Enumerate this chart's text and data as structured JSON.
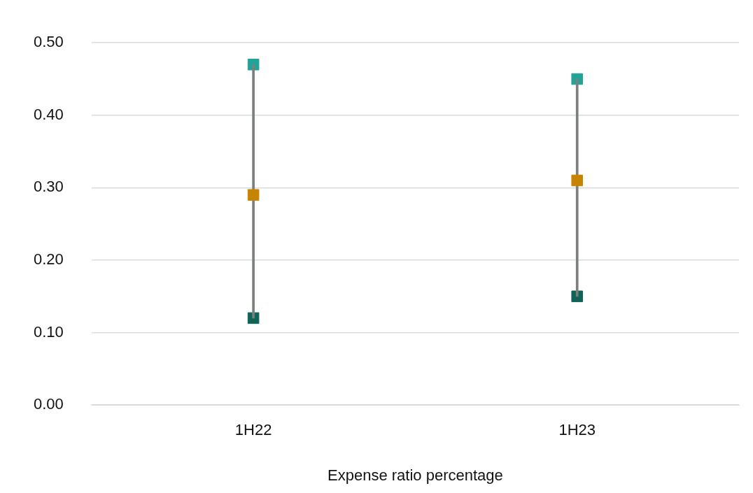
{
  "chart_data": {
    "type": "scatter",
    "xlabel": "Expense ratio percentage",
    "categories": [
      "1H22",
      "1H23"
    ],
    "series": [
      {
        "type": "bar",
        "color": "#7b7f7e",
        "base": [
          0.12,
          0.15
        ],
        "values": [
          0.35,
          0.3
        ]
      },
      {
        "color": "#0f6357",
        "values": [
          0.12,
          0.15
        ],
        "marker": "square"
      },
      {
        "color": "#22a398",
        "values": [
          0.47,
          0.45
        ],
        "marker": "square"
      },
      {
        "color": "#c68400",
        "values": [
          0.29,
          0.31
        ],
        "marker": "square"
      }
    ],
    "ylim": [
      0,
      0.5
    ],
    "yticks": [
      {
        "value": 0,
        "label": "0.00"
      },
      {
        "value": 0.1,
        "label": "0.10"
      },
      {
        "value": 0.2,
        "label": "0.20"
      },
      {
        "value": 0.3,
        "label": "0.30"
      },
      {
        "value": 0.4,
        "label": "0.40"
      },
      {
        "value": 0.5,
        "label": "0.50"
      }
    ],
    "grid": "y",
    "legend": false
  }
}
